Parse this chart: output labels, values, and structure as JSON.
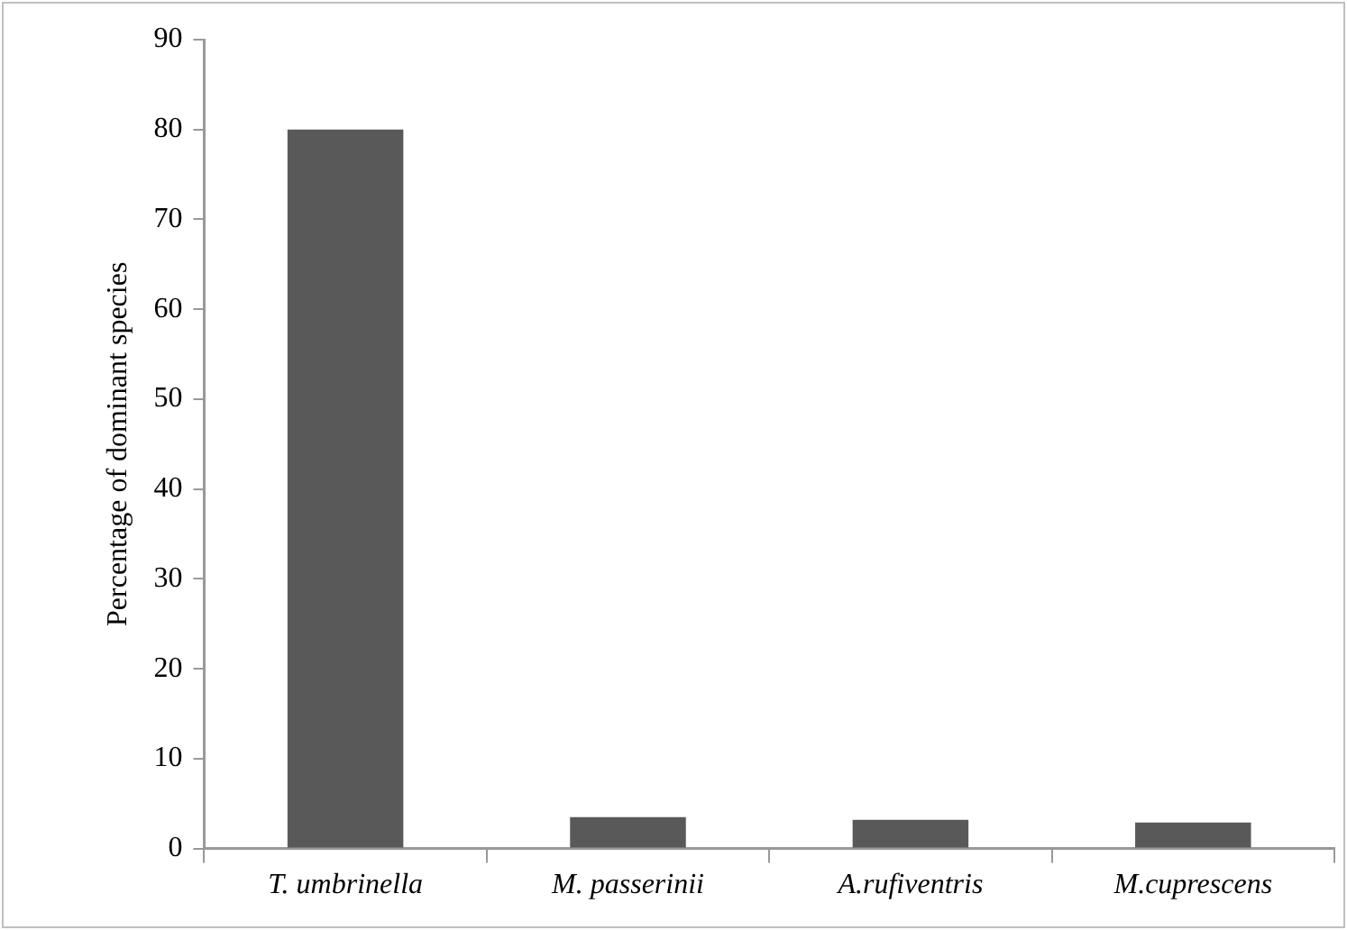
{
  "chart_data": {
    "type": "bar",
    "ylabel": "Percentage of dominant species",
    "categories": [
      "T. umbrinella",
      "M. passerinii",
      "A.rufiventris",
      "M.cuprescens"
    ],
    "values": [
      80,
      3.5,
      3.2,
      2.9
    ],
    "color": "#595959",
    "ylim": [
      0,
      90
    ],
    "yticks": [
      0,
      10,
      20,
      30,
      40,
      50,
      60,
      70,
      80,
      90
    ],
    "grid": false,
    "legend": false
  }
}
